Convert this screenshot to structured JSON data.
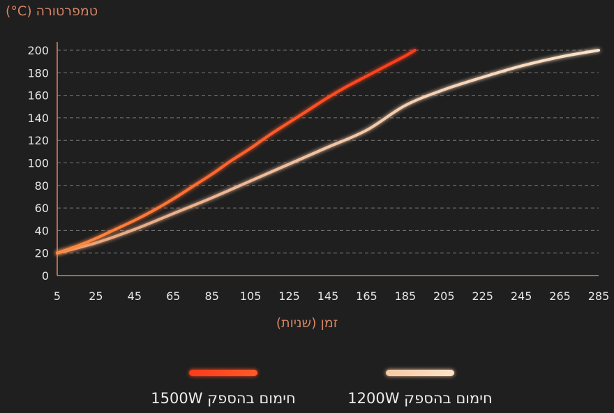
{
  "chart_data": {
    "type": "line",
    "ylabel": "טמפרטורה (C°)",
    "xlabel": "זמן (שניות)",
    "xlim": [
      5,
      285
    ],
    "ylim": [
      0,
      200
    ],
    "x_ticks": [
      5,
      25,
      45,
      65,
      85,
      105,
      125,
      145,
      165,
      185,
      205,
      225,
      245,
      265,
      285
    ],
    "y_ticks": [
      0,
      20,
      40,
      60,
      80,
      100,
      120,
      140,
      160,
      180,
      200
    ],
    "grid": "horizontal-dashed",
    "legend_position": "bottom",
    "series": [
      {
        "name": "חימום בהספק 1500W",
        "color": "#ff4a1c",
        "color_end": "#f8722e",
        "x": [
          5,
          15,
          25,
          35,
          45,
          55,
          65,
          75,
          85,
          95,
          105,
          115,
          125,
          135,
          145,
          155,
          165,
          175,
          185,
          190
        ],
        "y": [
          20,
          26,
          33,
          41,
          49,
          58,
          68,
          79,
          90,
          102,
          113,
          125,
          136,
          147,
          158,
          168,
          177,
          186,
          195,
          200
        ]
      },
      {
        "name": "חימום בהספק 1200W",
        "color": "#f4c09a",
        "color_end": "#f8dcc0",
        "x": [
          5,
          25,
          45,
          65,
          85,
          105,
          125,
          145,
          165,
          185,
          205,
          225,
          245,
          265,
          285
        ],
        "y": [
          20,
          29,
          41,
          55,
          69,
          84,
          99,
          114,
          129,
          151,
          165,
          176,
          186,
          194,
          200
        ]
      }
    ]
  }
}
